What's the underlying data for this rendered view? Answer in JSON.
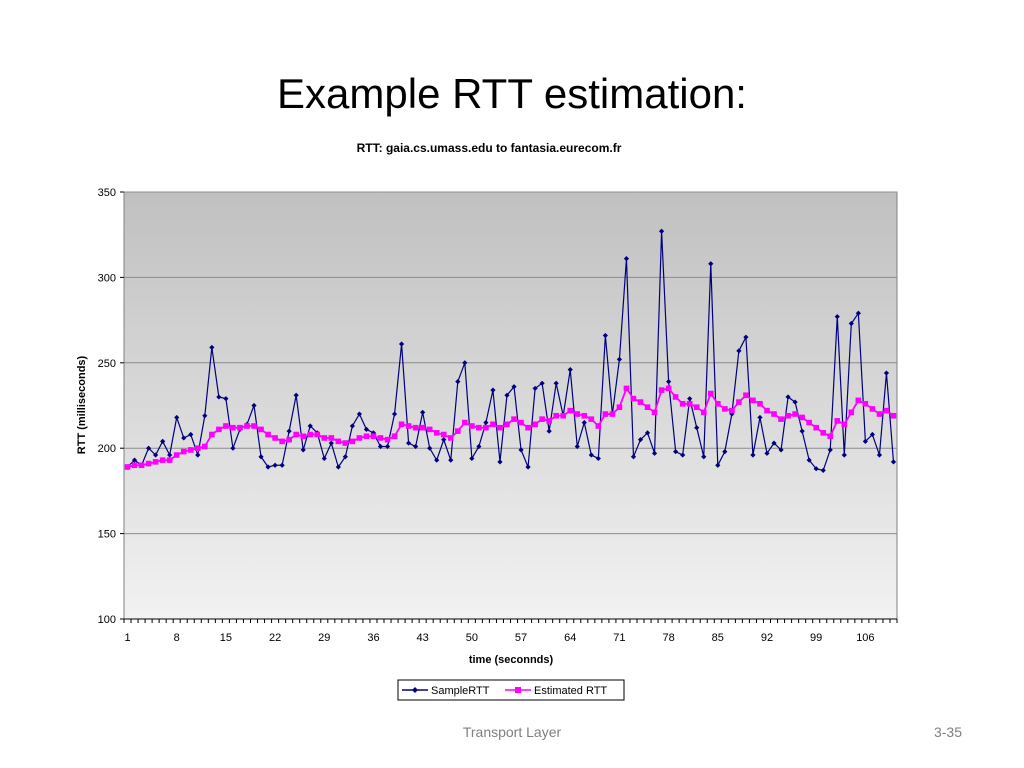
{
  "slide": {
    "title": "Example RTT estimation:",
    "footer_center": "Transport Layer",
    "footer_right": "3-35"
  },
  "chart_data": {
    "type": "line",
    "title": "RTT: gaia.cs.umass.edu to fantasia.eurecom.fr",
    "xlabel": "time (seconnds)",
    "ylabel": "RTT (milliseconds)",
    "ylim": [
      100,
      350
    ],
    "yticks": [
      "100",
      "150",
      "200",
      "250",
      "300",
      "350"
    ],
    "xticks": [
      "1",
      "8",
      "15",
      "22",
      "29",
      "36",
      "43",
      "50",
      "57",
      "64",
      "71",
      "78",
      "85",
      "92",
      "99",
      "106"
    ],
    "grid": true,
    "legend": "bottom-center",
    "x_start": 1,
    "series": [
      {
        "name": "SampleRTT",
        "color": "#000080",
        "marker": "diamond",
        "values": [
          189,
          193,
          190,
          200,
          196,
          204,
          196,
          218,
          206,
          208,
          196,
          219,
          259,
          230,
          229,
          200,
          211,
          214,
          225,
          195,
          189,
          190,
          190,
          210,
          231,
          199,
          213,
          209,
          194,
          203,
          189,
          195,
          213,
          220,
          211,
          209,
          201,
          201,
          220,
          261,
          203,
          201,
          221,
          200,
          193,
          205,
          193,
          239,
          250,
          194,
          201,
          215,
          234,
          192,
          231,
          236,
          199,
          189,
          235,
          238,
          210,
          238,
          219,
          246,
          201,
          215,
          196,
          194,
          266,
          220,
          252,
          311,
          195,
          205,
          209,
          197,
          327,
          239,
          198,
          196,
          229,
          212,
          195,
          308,
          190,
          198,
          220,
          257,
          265,
          196,
          218,
          197,
          203,
          199,
          230,
          227,
          210,
          193,
          188,
          187,
          199,
          277,
          196,
          273,
          279,
          204,
          208,
          196,
          244,
          192
        ]
      },
      {
        "name": "Estimated RTT",
        "color": "#ff00ff",
        "marker": "square",
        "values": [
          189,
          190,
          190,
          191,
          192,
          193,
          193,
          196,
          198,
          199,
          200,
          201,
          208,
          211,
          213,
          212,
          212,
          213,
          213,
          211,
          208,
          206,
          204,
          205,
          208,
          207,
          208,
          208,
          206,
          206,
          204,
          203,
          204,
          206,
          207,
          207,
          206,
          205,
          207,
          214,
          213,
          212,
          212,
          211,
          209,
          208,
          206,
          210,
          215,
          213,
          212,
          212,
          214,
          212,
          214,
          217,
          215,
          212,
          214,
          217,
          216,
          219,
          219,
          222,
          220,
          219,
          217,
          213,
          220,
          220,
          224,
          235,
          229,
          227,
          224,
          221,
          234,
          235,
          230,
          226,
          226,
          224,
          221,
          232,
          226,
          223,
          222,
          227,
          231,
          228,
          226,
          222,
          220,
          217,
          219,
          220,
          218,
          215,
          212,
          209,
          207,
          216,
          214,
          221,
          228,
          226,
          223,
          220,
          222,
          219
        ]
      }
    ]
  }
}
